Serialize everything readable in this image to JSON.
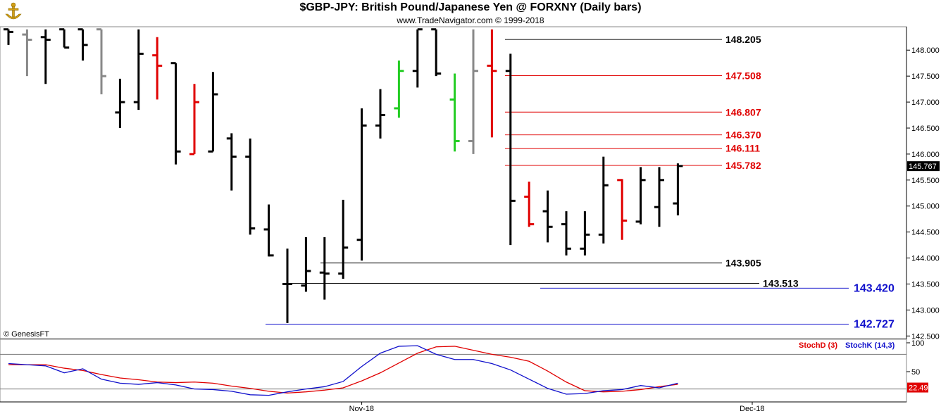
{
  "header": {
    "title": "$GBP-JPY:  British Pound/Japanese Yen @ FORXNY  (Daily bars)",
    "subtitle": "www.TradeNavigator.com © 1999-2018",
    "logo_icon": "anchor-icon"
  },
  "copyright": "© GenesisFT",
  "colors": {
    "bar": "#000000",
    "bar_gray": "#888888",
    "bar_red": "#e00000",
    "bar_green": "#22cc22",
    "level_black": "#000000",
    "level_red": "#e00000",
    "level_blue": "#1010cc",
    "stoch_d": "#e00000",
    "stoch_k": "#1010cc",
    "last_price_bg": "#000000",
    "stoch_badge_bg": "#e00000"
  },
  "chart_data": [
    {
      "type": "ohlc",
      "title": "$GBP-JPY:  British Pound/Japanese Yen @ FORXNY  (Daily bars)",
      "ylim": [
        142.45,
        148.45
      ],
      "yticks": [
        "148.000",
        "147.500",
        "147.000",
        "146.500",
        "146.000",
        "145.500",
        "145.000",
        "144.500",
        "144.000",
        "143.500",
        "143.000",
        "142.500"
      ],
      "ytick_values": [
        148.0,
        147.5,
        147.0,
        146.5,
        146.0,
        145.5,
        145.0,
        144.5,
        144.0,
        143.5,
        143.0,
        142.5
      ],
      "last_price": "145.767",
      "last_price_value": 145.767,
      "bars": [
        {
          "i": 0,
          "o": 148.4,
          "h": 148.4,
          "l": 148.1,
          "c": 148.35,
          "color": "black"
        },
        {
          "i": 1,
          "o": 148.3,
          "h": 148.4,
          "l": 147.5,
          "c": 148.2,
          "color": "gray"
        },
        {
          "i": 2,
          "o": 148.25,
          "h": 148.4,
          "l": 147.35,
          "c": 148.2,
          "color": "black"
        },
        {
          "i": 3,
          "o": 148.4,
          "h": 148.4,
          "l": 148.05,
          "c": 148.05,
          "color": "black"
        },
        {
          "i": 4,
          "o": 148.4,
          "h": 148.4,
          "l": 147.8,
          "c": 148.1,
          "color": "black"
        },
        {
          "i": 5,
          "o": 148.4,
          "h": 148.4,
          "l": 147.15,
          "c": 147.5,
          "color": "gray"
        },
        {
          "i": 6,
          "o": 146.8,
          "h": 147.45,
          "l": 146.5,
          "c": 147.0,
          "color": "black"
        },
        {
          "i": 7,
          "o": 147.0,
          "h": 148.4,
          "l": 146.85,
          "c": 147.93,
          "color": "black"
        },
        {
          "i": 8,
          "o": 147.9,
          "h": 148.25,
          "l": 147.05,
          "c": 147.7,
          "color": "red"
        },
        {
          "i": 9,
          "o": 147.75,
          "h": 147.75,
          "l": 145.8,
          "c": 146.05,
          "color": "black"
        },
        {
          "i": 10,
          "o": 146.0,
          "h": 147.35,
          "l": 146.0,
          "c": 147.0,
          "color": "red"
        },
        {
          "i": 11,
          "o": 146.05,
          "h": 147.58,
          "l": 146.05,
          "c": 147.15,
          "color": "black"
        },
        {
          "i": 12,
          "o": 146.3,
          "h": 146.4,
          "l": 145.3,
          "c": 145.95,
          "color": "black"
        },
        {
          "i": 13,
          "o": 145.95,
          "h": 146.3,
          "l": 144.45,
          "c": 144.57,
          "color": "black"
        },
        {
          "i": 14,
          "o": 144.55,
          "h": 145.03,
          "l": 144.03,
          "c": 144.05,
          "color": "black"
        },
        {
          "i": 15,
          "o": 143.5,
          "h": 144.18,
          "l": 142.75,
          "c": 143.5,
          "color": "black"
        },
        {
          "i": 16,
          "o": 143.47,
          "h": 144.4,
          "l": 143.35,
          "c": 143.75,
          "color": "black"
        },
        {
          "i": 17,
          "o": 143.72,
          "h": 144.4,
          "l": 143.2,
          "c": 143.7,
          "color": "black"
        },
        {
          "i": 18,
          "o": 143.7,
          "h": 145.12,
          "l": 143.6,
          "c": 144.2,
          "color": "black"
        },
        {
          "i": 19,
          "o": 144.35,
          "h": 146.88,
          "l": 143.95,
          "c": 146.55,
          "color": "black"
        },
        {
          "i": 20,
          "o": 146.55,
          "h": 147.25,
          "l": 146.3,
          "c": 146.75,
          "color": "black"
        },
        {
          "i": 21,
          "o": 146.88,
          "h": 147.8,
          "l": 146.7,
          "c": 147.6,
          "color": "green"
        },
        {
          "i": 22,
          "o": 147.6,
          "h": 148.4,
          "l": 147.28,
          "c": 148.4,
          "color": "black"
        },
        {
          "i": 23,
          "o": 148.4,
          "h": 148.4,
          "l": 147.5,
          "c": 147.55,
          "color": "black"
        },
        {
          "i": 24,
          "o": 147.05,
          "h": 147.55,
          "l": 146.05,
          "c": 146.25,
          "color": "green"
        },
        {
          "i": 25,
          "o": 146.25,
          "h": 148.4,
          "l": 146.0,
          "c": 147.6,
          "color": "gray"
        },
        {
          "i": 26,
          "o": 147.7,
          "h": 148.4,
          "l": 146.32,
          "c": 147.6,
          "color": "red"
        },
        {
          "i": 27,
          "o": 147.6,
          "h": 147.93,
          "l": 144.25,
          "c": 145.1,
          "color": "black"
        },
        {
          "i": 28,
          "o": 145.18,
          "h": 145.47,
          "l": 144.6,
          "c": 144.65,
          "color": "red"
        },
        {
          "i": 29,
          "o": 144.9,
          "h": 145.3,
          "l": 144.3,
          "c": 144.6,
          "color": "black"
        },
        {
          "i": 30,
          "o": 144.65,
          "h": 144.9,
          "l": 144.05,
          "c": 144.18,
          "color": "black"
        },
        {
          "i": 31,
          "o": 144.18,
          "h": 144.9,
          "l": 144.05,
          "c": 144.45,
          "color": "black"
        },
        {
          "i": 32,
          "o": 144.45,
          "h": 145.95,
          "l": 144.28,
          "c": 145.4,
          "color": "black"
        },
        {
          "i": 33,
          "o": 145.5,
          "h": 145.52,
          "l": 144.35,
          "c": 144.72,
          "color": "red"
        },
        {
          "i": 34,
          "o": 144.7,
          "h": 145.75,
          "l": 144.65,
          "c": 145.5,
          "color": "black"
        },
        {
          "i": 35,
          "o": 144.98,
          "h": 145.75,
          "l": 144.6,
          "c": 145.5,
          "color": "black"
        },
        {
          "i": 36,
          "o": 145.05,
          "h": 145.82,
          "l": 144.82,
          "c": 145.77,
          "color": "black"
        }
      ],
      "levels": [
        {
          "label": "148.205",
          "value": 148.205,
          "color": "black"
        },
        {
          "label": "147.508",
          "value": 147.508,
          "color": "red"
        },
        {
          "label": "146.807",
          "value": 146.807,
          "color": "red"
        },
        {
          "label": "146.370",
          "value": 146.37,
          "color": "red"
        },
        {
          "label": "146.111",
          "value": 146.111,
          "color": "red"
        },
        {
          "label": "145.782",
          "value": 145.782,
          "color": "red"
        },
        {
          "label": "143.905",
          "value": 143.905,
          "color": "black"
        },
        {
          "label": "143.513",
          "value": 143.513,
          "color": "black"
        },
        {
          "label": "143.420",
          "value": 143.42,
          "color": "blue"
        },
        {
          "label": "142.727",
          "value": 142.727,
          "color": "blue"
        }
      ],
      "xticks": [
        {
          "label": "Nov-18",
          "bar": 19
        },
        {
          "label": "Dec-18",
          "bar": 40
        }
      ],
      "grid": false
    },
    {
      "type": "line",
      "title": "",
      "ylim": [
        0,
        100
      ],
      "yticks": [
        "100",
        "50"
      ],
      "ytick_values": [
        100,
        50
      ],
      "reference_lines": [
        80,
        20
      ],
      "last_value": "22.49",
      "last_value_num": 22.49,
      "series": [
        {
          "name": "StochD (3)",
          "color": "red",
          "values": [
            62,
            62,
            62,
            56,
            52,
            45,
            39,
            36,
            32,
            31,
            32,
            30,
            25,
            21,
            16,
            13,
            15,
            18,
            22,
            34,
            48,
            65,
            82,
            93,
            94,
            87,
            80,
            75,
            68,
            51,
            32,
            17,
            15,
            16,
            19,
            24,
            28
          ]
        },
        {
          "name": "StochK (14,3)",
          "color": "blue",
          "values": [
            64,
            62,
            60,
            48,
            55,
            37,
            30,
            28,
            31,
            27,
            20,
            19,
            16,
            10,
            9,
            15,
            20,
            24,
            33,
            59,
            82,
            94,
            95,
            80,
            71,
            71,
            64,
            53,
            37,
            21,
            11,
            12,
            17,
            19,
            26,
            22,
            30
          ]
        }
      ],
      "legend": "top-right"
    }
  ]
}
